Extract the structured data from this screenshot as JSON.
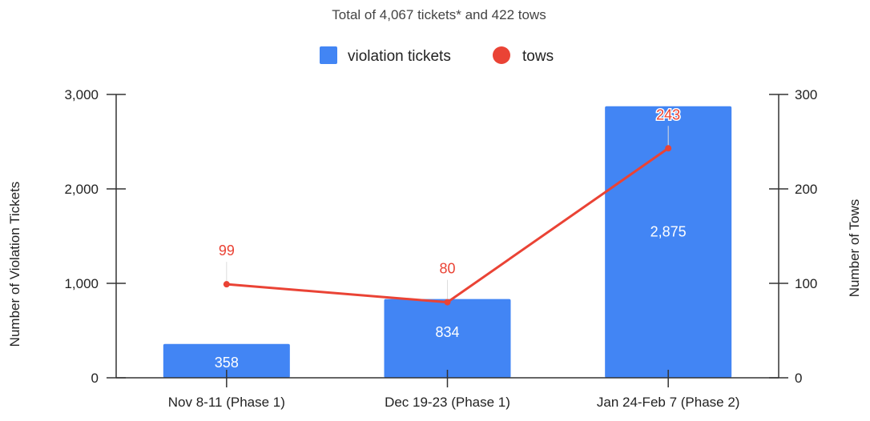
{
  "chart_data": {
    "type": "bar",
    "title": "Total of 4,067 tickets* and 422 tows",
    "categories": [
      "Nov 8-11 (Phase 1)",
      "Dec 19-23 (Phase 1)",
      "Jan 24-Feb 7 (Phase 2)"
    ],
    "series": [
      {
        "name": "violation tickets",
        "type": "bar",
        "axis": "left",
        "color": "#4285f4",
        "values": [
          358,
          834,
          2875
        ],
        "labels": [
          "358",
          "834",
          "2,875"
        ]
      },
      {
        "name": "tows",
        "type": "line",
        "axis": "right",
        "color": "#ea4335",
        "values": [
          99,
          80,
          243
        ],
        "labels": [
          "99",
          "80",
          "243"
        ]
      }
    ],
    "ylabel": "Number of Violation Tickets",
    "y2label": "Number of Tows",
    "ylim": [
      0,
      3000
    ],
    "y2lim": [
      0,
      300
    ],
    "yticks": [
      "0",
      "1,000",
      "2,000",
      "3,000"
    ],
    "y2ticks": [
      "0",
      "100",
      "200",
      "300"
    ],
    "grid": false,
    "legend": "top-center"
  }
}
